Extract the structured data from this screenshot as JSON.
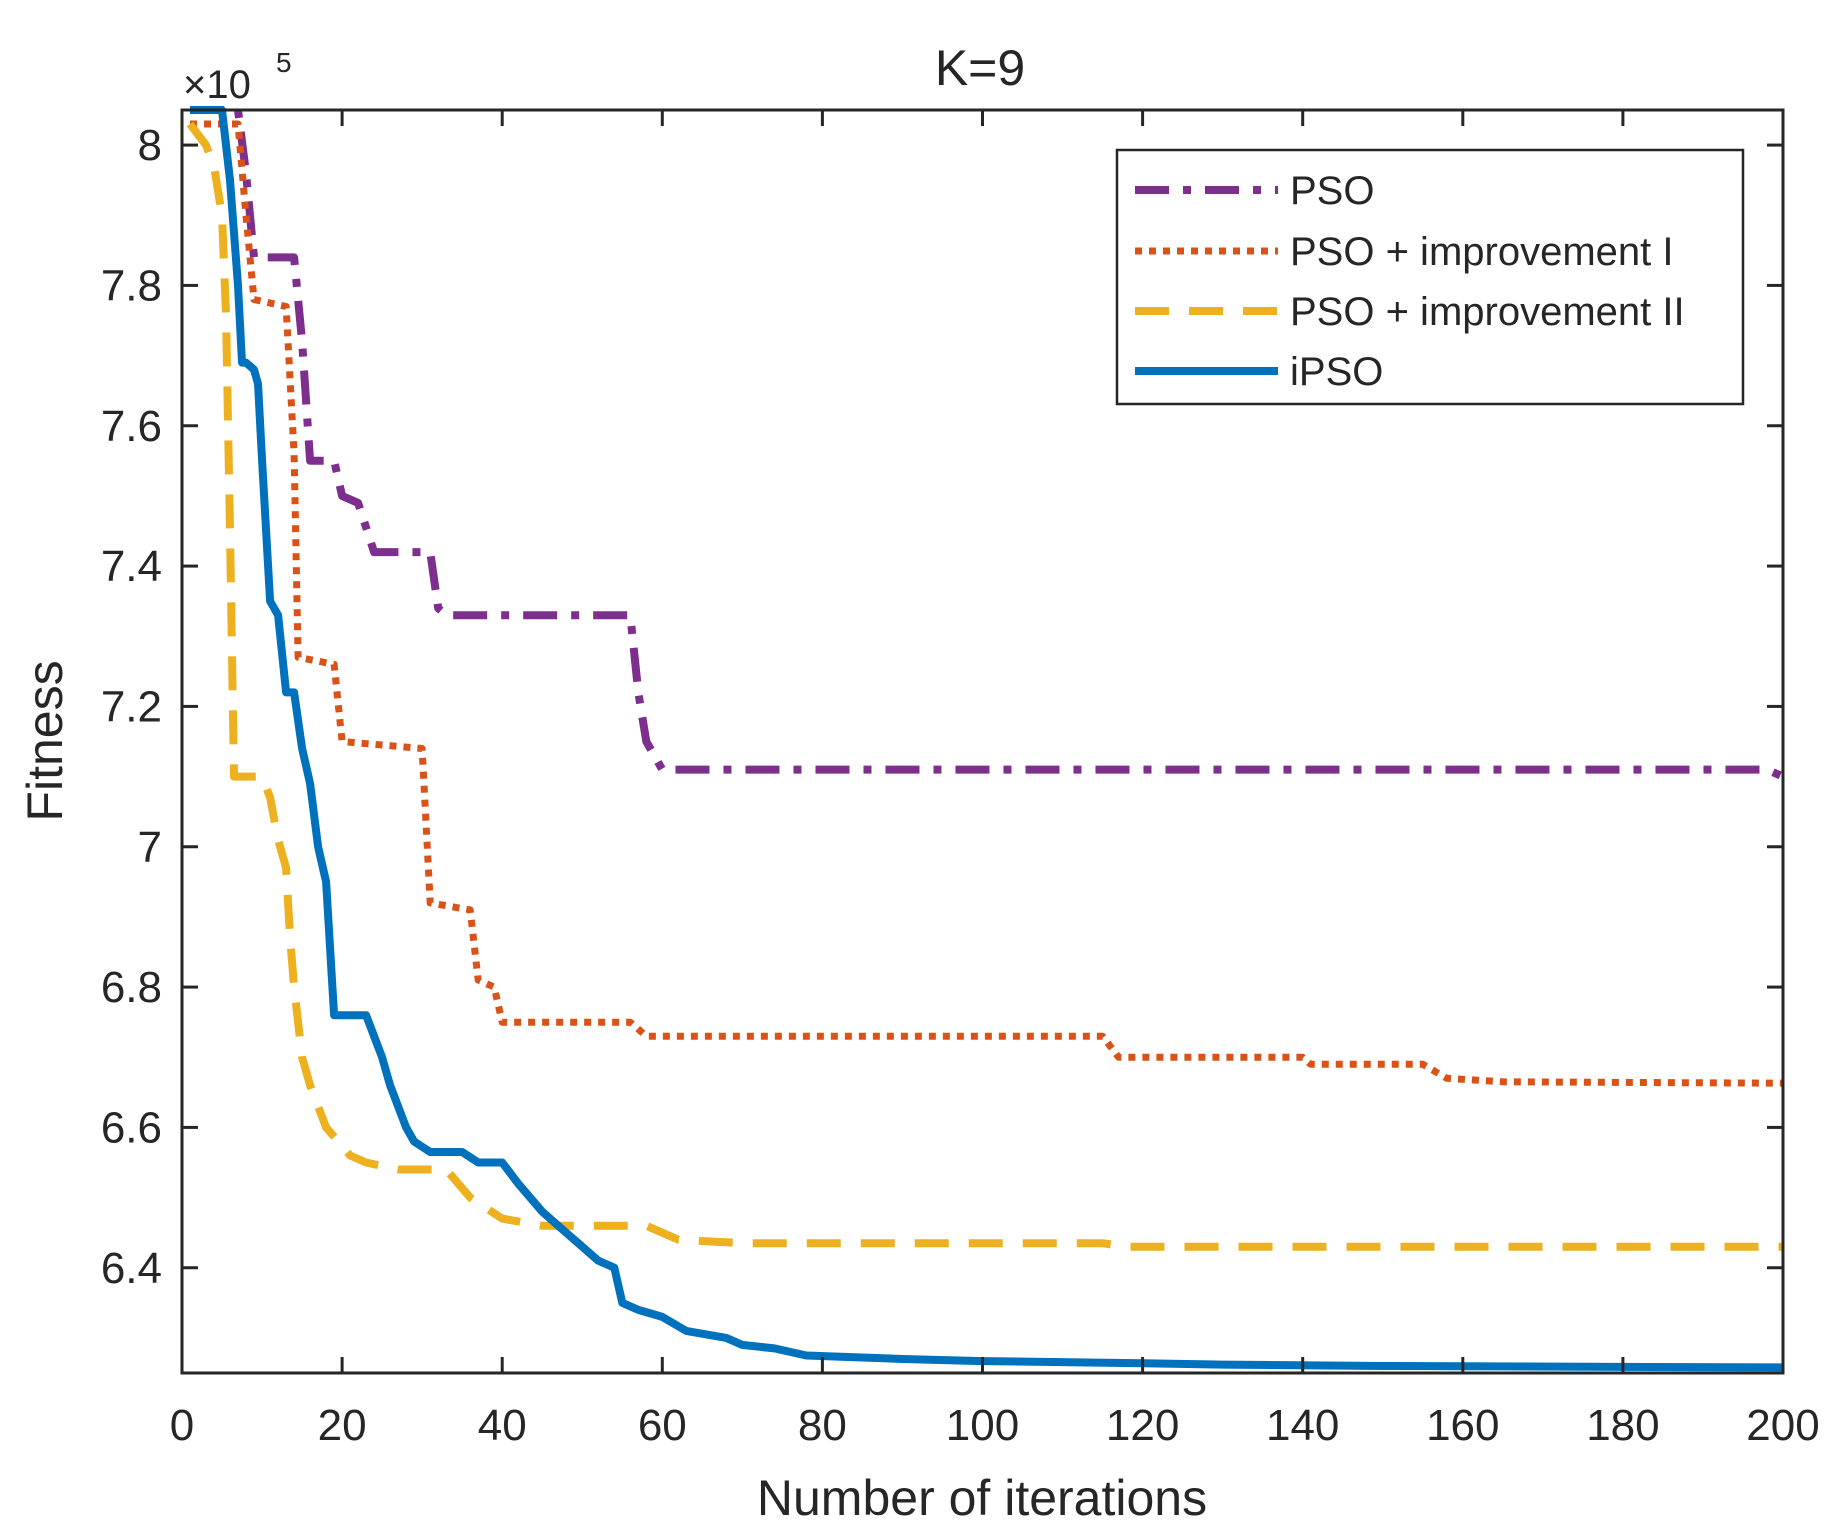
{
  "chart_data": {
    "type": "line",
    "title": "K=9",
    "xlabel": "Number of iterations",
    "ylabel": "Fitness",
    "xlim": [
      0,
      200
    ],
    "ylim": [
      6.25,
      8.05
    ],
    "y_exponent": {
      "base": "×10",
      "power": "5"
    },
    "x_ticks": [
      0,
      20,
      40,
      60,
      80,
      100,
      120,
      140,
      160,
      180,
      200
    ],
    "x_tick_labels": [
      "0",
      "20",
      "40",
      "60",
      "80",
      "100",
      "120",
      "140",
      "160",
      "180",
      "200"
    ],
    "y_ticks": [
      6.4,
      6.6,
      6.8,
      7.0,
      7.2,
      7.4,
      7.6,
      7.8,
      8.0
    ],
    "y_tick_labels": [
      "6.4",
      "6.6",
      "6.8",
      "7",
      "7.2",
      "7.4",
      "7.6",
      "7.8",
      "8"
    ],
    "grid": false,
    "legend_position": "top-right",
    "series": [
      {
        "name": "PSO",
        "color": "#7E2F8E",
        "style": "dashdot",
        "points": [
          [
            1,
            8.05
          ],
          [
            7,
            8.05
          ],
          [
            8,
            7.96
          ],
          [
            9,
            7.84
          ],
          [
            14,
            7.84
          ],
          [
            15,
            7.72
          ],
          [
            16,
            7.55
          ],
          [
            19,
            7.55
          ],
          [
            20,
            7.5
          ],
          [
            22,
            7.49
          ],
          [
            24,
            7.42
          ],
          [
            31,
            7.42
          ],
          [
            32,
            7.34
          ],
          [
            33,
            7.33
          ],
          [
            56,
            7.33
          ],
          [
            57,
            7.22
          ],
          [
            58,
            7.15
          ],
          [
            60,
            7.11
          ],
          [
            198,
            7.11
          ],
          [
            200,
            7.1
          ]
        ]
      },
      {
        "name": "PSO + improvement I",
        "color": "#D95319",
        "style": "dotted",
        "points": [
          [
            1,
            8.03
          ],
          [
            7,
            8.03
          ],
          [
            8,
            7.9
          ],
          [
            9,
            7.78
          ],
          [
            13,
            7.77
          ],
          [
            14,
            7.56
          ],
          [
            14.5,
            7.27
          ],
          [
            19,
            7.26
          ],
          [
            20,
            7.15
          ],
          [
            30,
            7.14
          ],
          [
            31,
            6.92
          ],
          [
            36,
            6.91
          ],
          [
            37,
            6.81
          ],
          [
            39,
            6.8
          ],
          [
            40,
            6.75
          ],
          [
            56,
            6.75
          ],
          [
            58,
            6.73
          ],
          [
            115,
            6.73
          ],
          [
            117,
            6.7
          ],
          [
            140,
            6.7
          ],
          [
            141,
            6.69
          ],
          [
            155,
            6.69
          ],
          [
            158,
            6.67
          ],
          [
            165,
            6.665
          ],
          [
            200,
            6.663
          ]
        ]
      },
      {
        "name": "PSO + improvement II",
        "color": "#EDB120",
        "style": "dashed",
        "points": [
          [
            1,
            8.03
          ],
          [
            3,
            8.0
          ],
          [
            4,
            7.97
          ],
          [
            5,
            7.9
          ],
          [
            5.5,
            7.76
          ],
          [
            6,
            7.45
          ],
          [
            6.5,
            7.1
          ],
          [
            9,
            7.1
          ],
          [
            10,
            7.1
          ],
          [
            11,
            7.07
          ],
          [
            12,
            7.01
          ],
          [
            13,
            6.97
          ],
          [
            13.5,
            6.87
          ],
          [
            14,
            6.8
          ],
          [
            15,
            6.7
          ],
          [
            16,
            6.66
          ],
          [
            18,
            6.6
          ],
          [
            21,
            6.56
          ],
          [
            23,
            6.55
          ],
          [
            27,
            6.54
          ],
          [
            33,
            6.54
          ],
          [
            36,
            6.5
          ],
          [
            40,
            6.47
          ],
          [
            45,
            6.46
          ],
          [
            58,
            6.46
          ],
          [
            62,
            6.44
          ],
          [
            70,
            6.435
          ],
          [
            115,
            6.435
          ],
          [
            118,
            6.43
          ],
          [
            200,
            6.43
          ]
        ]
      },
      {
        "name": "iPSO",
        "color": "#0072BD",
        "style": "solid",
        "points": [
          [
            1,
            8.05
          ],
          [
            5,
            8.05
          ],
          [
            6,
            7.95
          ],
          [
            7,
            7.8
          ],
          [
            7.5,
            7.69
          ],
          [
            8,
            7.69
          ],
          [
            9,
            7.68
          ],
          [
            9.5,
            7.66
          ],
          [
            10,
            7.55
          ],
          [
            11,
            7.35
          ],
          [
            12,
            7.33
          ],
          [
            13,
            7.22
          ],
          [
            14,
            7.22
          ],
          [
            15,
            7.14
          ],
          [
            16,
            7.09
          ],
          [
            17,
            7.0
          ],
          [
            18,
            6.95
          ],
          [
            19,
            6.76
          ],
          [
            23,
            6.76
          ],
          [
            25,
            6.7
          ],
          [
            26,
            6.66
          ],
          [
            28,
            6.6
          ],
          [
            29,
            6.58
          ],
          [
            31,
            6.565
          ],
          [
            35,
            6.565
          ],
          [
            37,
            6.55
          ],
          [
            40,
            6.55
          ],
          [
            42,
            6.52
          ],
          [
            45,
            6.48
          ],
          [
            48,
            6.45
          ],
          [
            50,
            6.43
          ],
          [
            52,
            6.41
          ],
          [
            54,
            6.4
          ],
          [
            55,
            6.35
          ],
          [
            57,
            6.34
          ],
          [
            60,
            6.33
          ],
          [
            63,
            6.31
          ],
          [
            68,
            6.3
          ],
          [
            70,
            6.29
          ],
          [
            74,
            6.285
          ],
          [
            78,
            6.275
          ],
          [
            90,
            6.27
          ],
          [
            100,
            6.267
          ],
          [
            120,
            6.264
          ],
          [
            130,
            6.262
          ],
          [
            150,
            6.26
          ],
          [
            200,
            6.258
          ]
        ]
      }
    ]
  }
}
